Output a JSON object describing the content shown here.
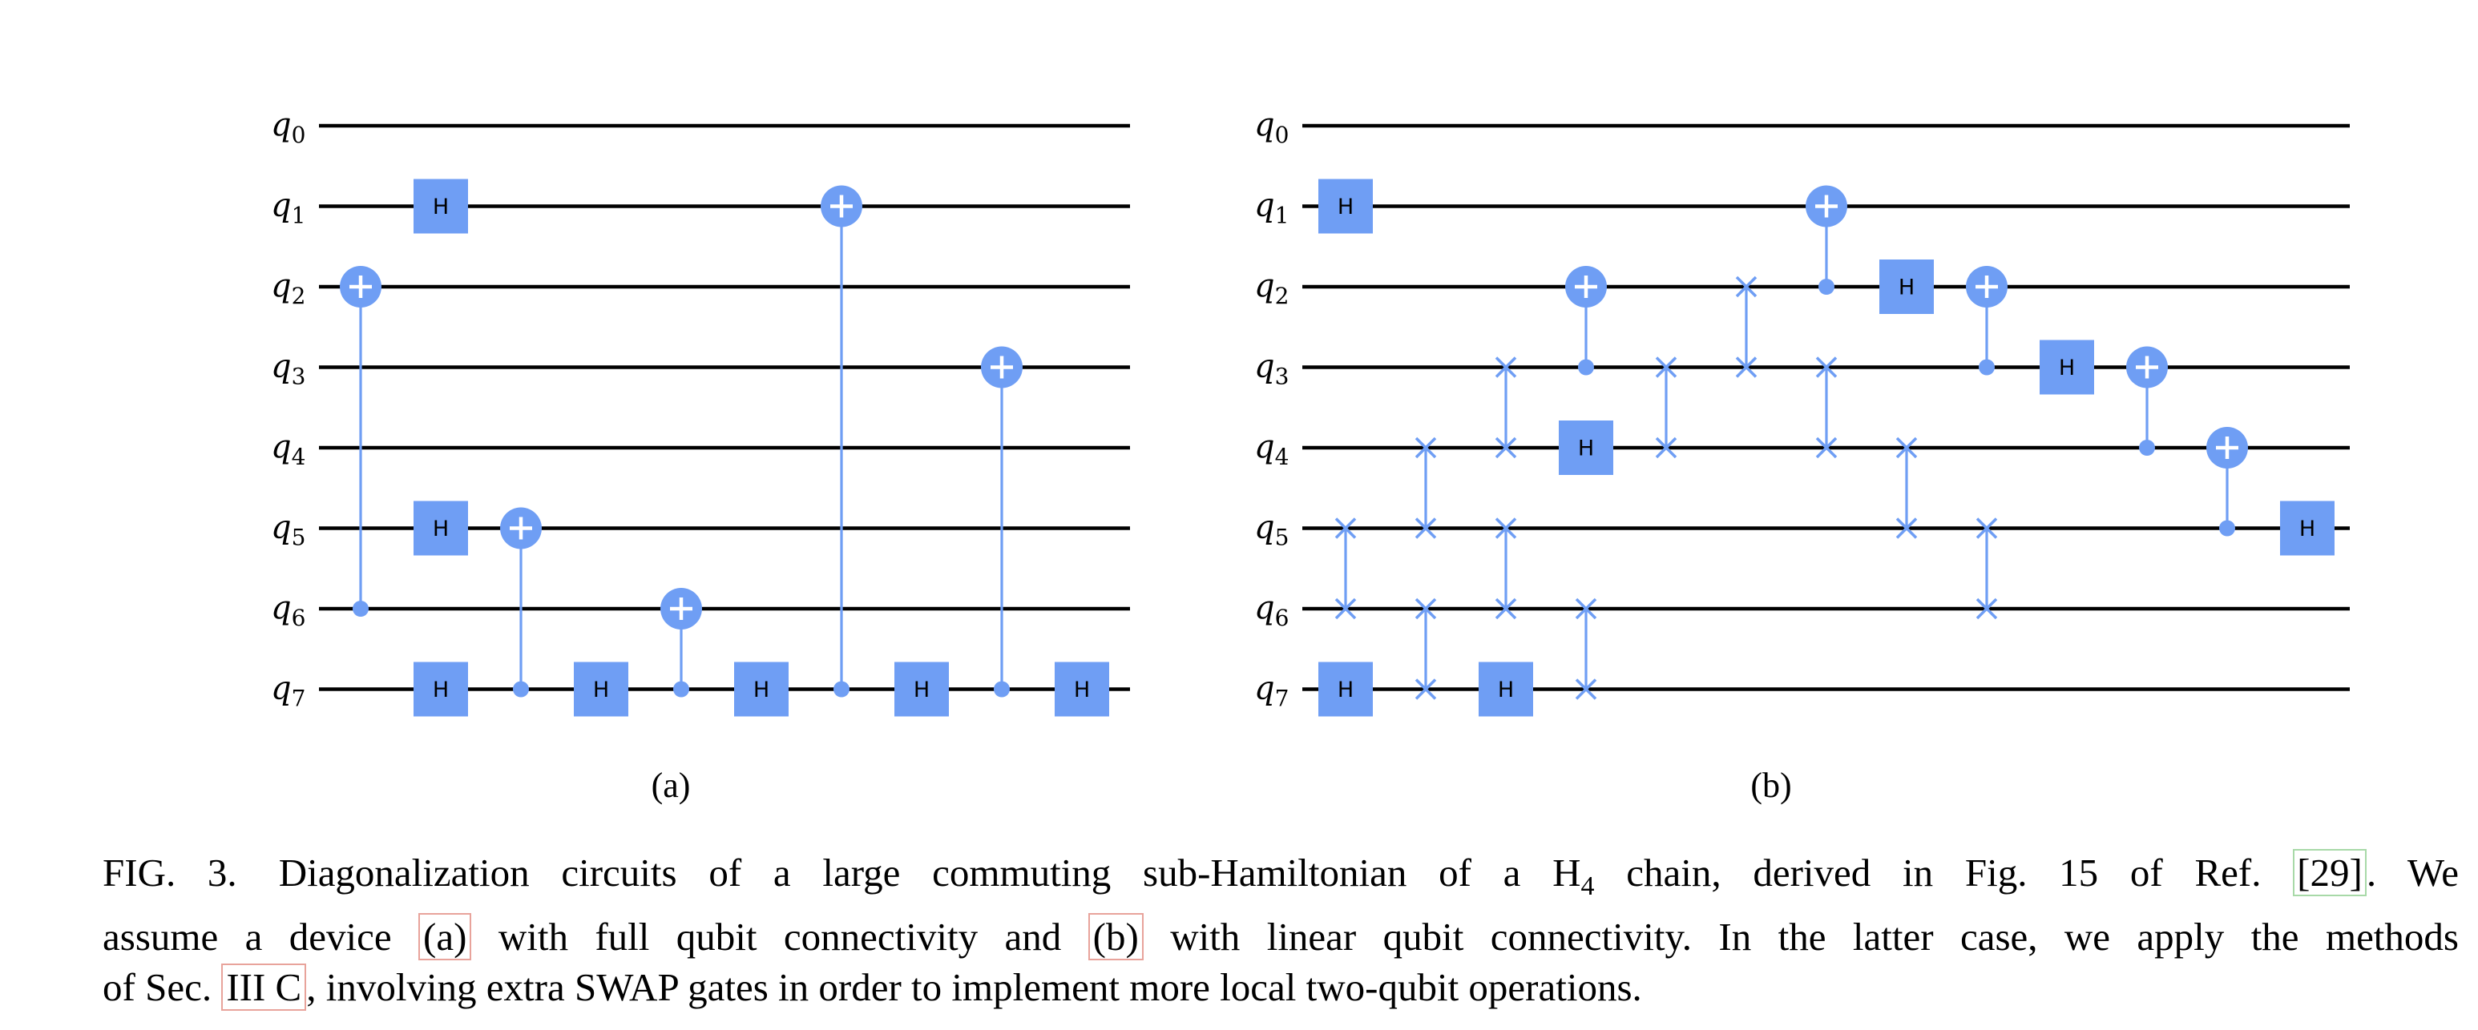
{
  "panels": [
    {
      "label": "(a)",
      "qubits": [
        "q0",
        "q1",
        "q2",
        "q3",
        "q4",
        "q5",
        "q6",
        "q7"
      ],
      "gates": [
        {
          "type": "H",
          "qubit": 1,
          "step": 1
        },
        {
          "type": "CNOT",
          "control": 6,
          "target": 2,
          "step": 0
        },
        {
          "type": "H",
          "qubit": 5,
          "step": 1
        },
        {
          "type": "H",
          "qubit": 7,
          "step": 1
        },
        {
          "type": "CNOT",
          "control": 7,
          "target": 5,
          "step": 2
        },
        {
          "type": "H",
          "qubit": 7,
          "step": 3
        },
        {
          "type": "CNOT",
          "control": 7,
          "target": 6,
          "step": 4
        },
        {
          "type": "H",
          "qubit": 7,
          "step": 5
        },
        {
          "type": "CNOT",
          "control": 7,
          "target": 1,
          "step": 6
        },
        {
          "type": "H",
          "qubit": 7,
          "step": 7
        },
        {
          "type": "CNOT",
          "control": 7,
          "target": 3,
          "step": 8
        },
        {
          "type": "H",
          "qubit": 7,
          "step": 9
        }
      ]
    },
    {
      "label": "(b)",
      "qubits": [
        "q0",
        "q1",
        "q2",
        "q3",
        "q4",
        "q5",
        "q6",
        "q7"
      ],
      "gates": [
        {
          "type": "H",
          "qubit": 1,
          "step": 0
        },
        {
          "type": "H",
          "qubit": 7,
          "step": 0
        },
        {
          "type": "SWAP",
          "qubits": [
            5,
            6
          ],
          "step": 0
        },
        {
          "type": "SWAP",
          "qubits": [
            4,
            5
          ],
          "step": 1
        },
        {
          "type": "SWAP",
          "qubits": [
            6,
            7
          ],
          "step": 1
        },
        {
          "type": "SWAP",
          "qubits": [
            3,
            4
          ],
          "step": 2
        },
        {
          "type": "SWAP",
          "qubits": [
            5,
            6
          ],
          "step": 2
        },
        {
          "type": "H",
          "qubit": 7,
          "step": 2
        },
        {
          "type": "CNOT",
          "control": 3,
          "target": 2,
          "step": 3
        },
        {
          "type": "SWAP",
          "qubits": [
            6,
            7
          ],
          "step": 3
        },
        {
          "type": "H",
          "qubit": 4,
          "step": 3
        },
        {
          "type": "SWAP",
          "qubits": [
            3,
            4
          ],
          "step": 4
        },
        {
          "type": "SWAP",
          "qubits": [
            2,
            3
          ],
          "step": 5
        },
        {
          "type": "CNOT",
          "control": 2,
          "target": 1,
          "step": 6
        },
        {
          "type": "SWAP",
          "qubits": [
            3,
            4
          ],
          "step": 6
        },
        {
          "type": "H",
          "qubit": 2,
          "step": 7
        },
        {
          "type": "SWAP",
          "qubits": [
            4,
            5
          ],
          "step": 7
        },
        {
          "type": "CNOT",
          "control": 3,
          "target": 2,
          "step": 8
        },
        {
          "type": "SWAP",
          "qubits": [
            5,
            6
          ],
          "step": 8
        },
        {
          "type": "H",
          "qubit": 3,
          "step": 9
        },
        {
          "type": "CNOT",
          "control": 4,
          "target": 3,
          "step": 10
        },
        {
          "type": "CNOT",
          "control": 5,
          "target": 4,
          "step": 11
        },
        {
          "type": "H",
          "qubit": 5,
          "step": 12
        }
      ]
    }
  ],
  "gate_label": "H",
  "caption": {
    "figure_tag": "FIG. 3.",
    "l1_text": "Diagonalization circuits of a large commuting sub-Hamiltonian of a H",
    "l1_sub": "4",
    "l1_rest": " chain, derived in Fig. 15 of Ref. ",
    "ref": "[29]",
    "l1_end": ". We",
    "l2_a": "assume a device ",
    "l2_ref_a": "(a)",
    "l2_b": " with full qubit connectivity and ",
    "l2_ref_b": "(b)",
    "l2_c": " with linear qubit connectivity. In the latter case, we apply the methods",
    "l3_a": "of Sec. ",
    "l3_ref": "III C",
    "l3_b": ", involving extra SWAP gates in order to implement more local two-qubit operations."
  },
  "colors": {
    "gate": "#6f9ef4",
    "wire": "#000000"
  }
}
